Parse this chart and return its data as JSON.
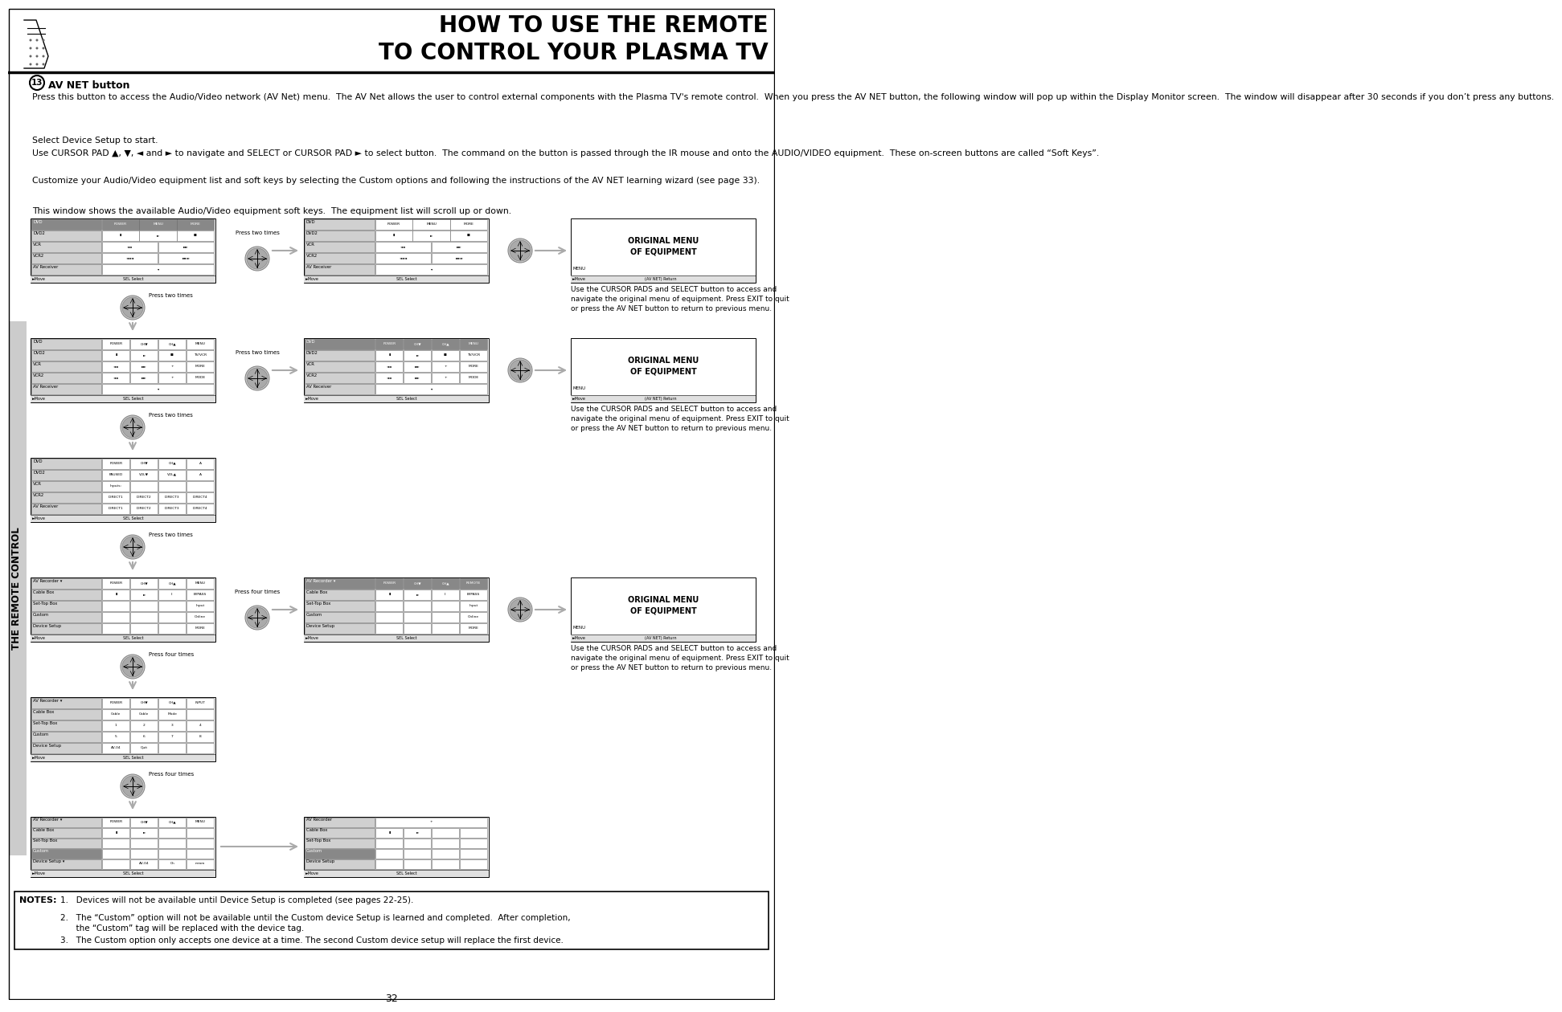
{
  "title_line1": "HOW TO USE THE REMOTE",
  "title_line2": "TO CONTROL YOUR PLASMA TV",
  "page_number": "32",
  "sidebar_text": "THE REMOTE CONTROL",
  "section_number": "13",
  "section_title": "AV NET button",
  "para1": "Press this button to access the Audio/Video network (AV Net) menu.  The AV Net allows the user to control external components with the Plasma TV's remote control.  When you press the AV NET button, the following window will pop up within the Display Monitor screen.  The window will disappear after 30 seconds if you don’t press any buttons.",
  "para2": "Select Device Setup to start.",
  "para3": "Use CURSOR PAD ▲, ▼, ◄ and ► to navigate and SELECT or CURSOR PAD ► to select button.  The command on the button is passed through the IR mouse and onto the AUDIO/VIDEO equipment.  These on-screen buttons are called “Soft Keys”.",
  "para4": "Customize your Audio/Video equipment list and soft keys by selecting the Custom options and following the instructions of the AV NET learning wizard (see page 33).",
  "para5": "This window shows the available Audio/Video equipment soft keys.  The equipment list will scroll up or down.",
  "caption1": "Use the CURSOR PADS and SELECT button to access and\nnavigate the original menu of equipment. Press EXIT to quit\nor press the AV NET button to return to previous menu.",
  "notes_title": "NOTES:",
  "note1": "1.   Devices will not be available until Device Setup is completed (see pages 22-25).",
  "note2": "2.   The “Custom” option will not be available until the Custom device Setup is learned and completed.  After completion,\n      the “Custom” tag will be replaced with the device tag.",
  "note3": "3.   The Custom option only accepts one device at a time. The second Custom device setup will replace the first device.",
  "bg_color": "#ffffff",
  "sidebar_bg": "#cccccc",
  "sidebar_text_color": "#000000"
}
